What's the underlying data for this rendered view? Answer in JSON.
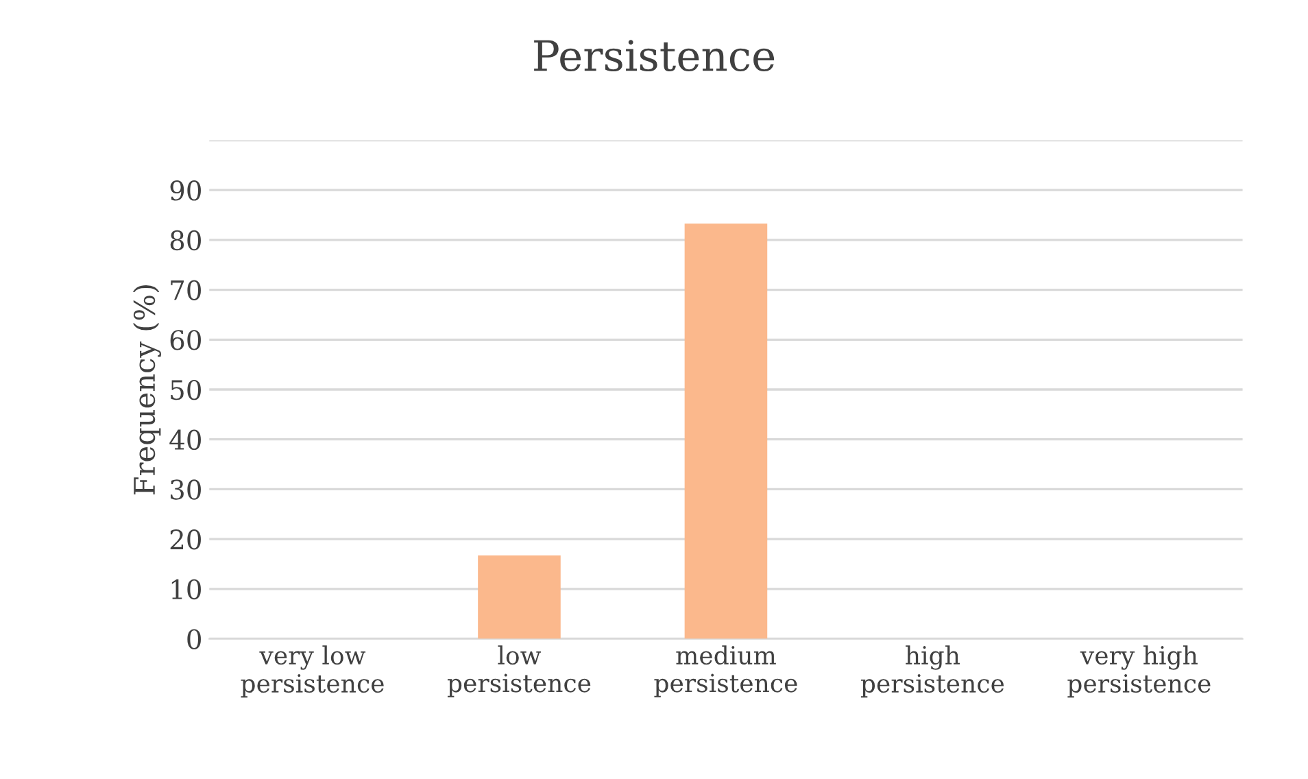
{
  "chart_data": {
    "type": "bar",
    "title": "Persistence",
    "ylabel": "Frequency (%)",
    "categories": [
      "very low\npersistence",
      "low\npersistence",
      "medium\npersistence",
      "high\npersistence",
      "very high\npersistence"
    ],
    "values": [
      0,
      16.7,
      83.3,
      0,
      0
    ],
    "color": "#fbb88c",
    "ylim": [
      0,
      100
    ],
    "yticks": [
      0,
      10,
      20,
      30,
      40,
      50,
      60,
      70,
      80,
      90,
      {
        "value": 100,
        "label": null
      }
    ],
    "grid": "y"
  }
}
